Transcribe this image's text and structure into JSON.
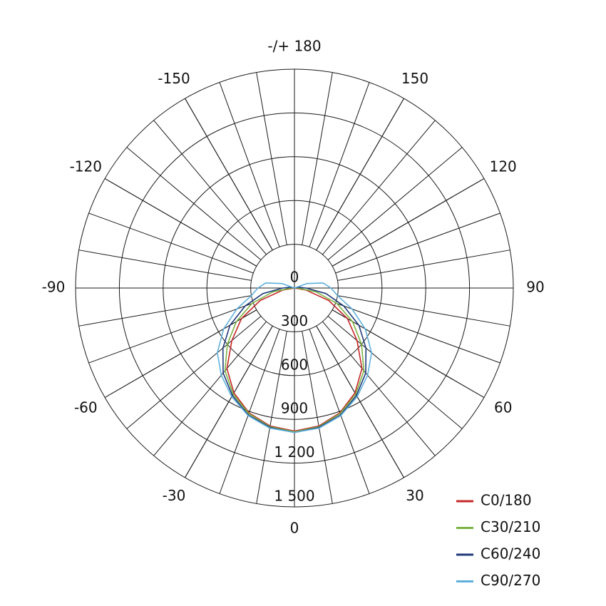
{
  "chart_data": {
    "type": "polar",
    "angles": [
      0,
      10,
      20,
      30,
      40,
      50,
      60,
      70,
      80,
      90,
      100,
      110,
      120,
      130,
      140,
      150,
      160,
      170,
      180
    ],
    "rlim": [
      0,
      1500
    ],
    "rticks": [
      0,
      300,
      600,
      900,
      {
        "value": 1200,
        "label": "1 200"
      },
      {
        "value": 1500,
        "label": "1 500"
      }
    ],
    "thetaticks": [
      {
        "value": 180,
        "label": "-/+ 180"
      },
      150,
      120,
      90,
      60,
      30,
      0,
      -30,
      -60,
      -90,
      -120,
      -150
    ],
    "series": [
      {
        "name": "C0/180",
        "color": "#c62828",
        "values": [
          980,
          960,
          910,
          830,
          720,
          560,
          420,
          250,
          80,
          0,
          0,
          0,
          0,
          0,
          0,
          0,
          0,
          0,
          0
        ]
      },
      {
        "name": "C30/210",
        "color": "#7cb342",
        "values": [
          985,
          965,
          915,
          840,
          740,
          600,
          460,
          310,
          150,
          20,
          0,
          0,
          0,
          0,
          0,
          0,
          0,
          0,
          0
        ]
      },
      {
        "name": "C60/240",
        "color": "#1f3a7a",
        "values": [
          990,
          970,
          925,
          850,
          760,
          640,
          510,
          360,
          220,
          80,
          30,
          0,
          0,
          0,
          0,
          0,
          0,
          0,
          0
        ]
      },
      {
        "name": "C90/270",
        "color": "#5fb0dc",
        "values": [
          990,
          975,
          930,
          860,
          780,
          690,
          560,
          420,
          300,
          250,
          200,
          90,
          0,
          0,
          0,
          0,
          0,
          0,
          0
        ]
      }
    ]
  }
}
